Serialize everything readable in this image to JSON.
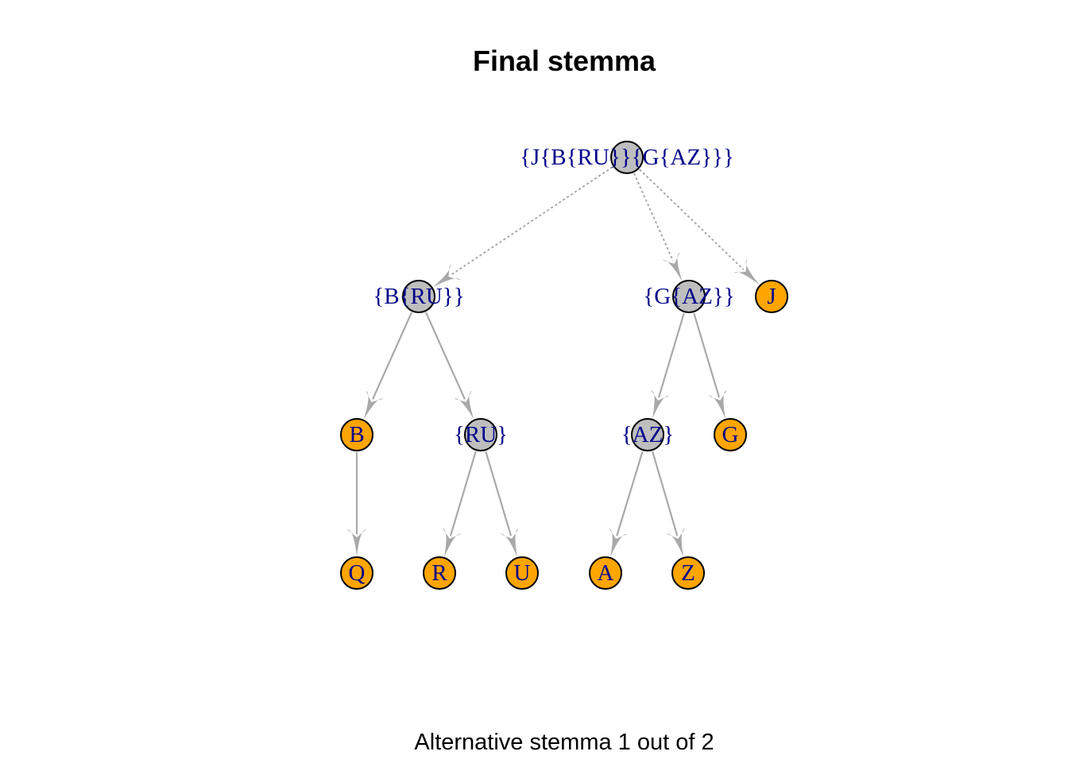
{
  "title": "Final stemma",
  "subtitle": "Alternative stemma 1 out of 2",
  "colors": {
    "internal_node": "#bebebe",
    "leaf_node": "#ffa500",
    "node_border": "#000000",
    "edge": "#a9a9a9",
    "label": "#00008b"
  },
  "nodes": [
    {
      "id": "root",
      "label": "{J{B{RU}}{G{AZ}}}",
      "kind": "internal"
    },
    {
      "id": "BRU",
      "label": "{B{RU}}",
      "kind": "internal"
    },
    {
      "id": "GAZ",
      "label": "{G{AZ}}",
      "kind": "internal"
    },
    {
      "id": "J",
      "label": "J",
      "kind": "leaf"
    },
    {
      "id": "B",
      "label": "B",
      "kind": "leaf"
    },
    {
      "id": "RU",
      "label": "{RU}",
      "kind": "internal"
    },
    {
      "id": "AZ",
      "label": "{AZ}",
      "kind": "internal"
    },
    {
      "id": "G",
      "label": "G",
      "kind": "leaf"
    },
    {
      "id": "Q",
      "label": "Q",
      "kind": "leaf"
    },
    {
      "id": "R",
      "label": "R",
      "kind": "leaf"
    },
    {
      "id": "U",
      "label": "U",
      "kind": "leaf"
    },
    {
      "id": "A",
      "label": "A",
      "kind": "leaf"
    },
    {
      "id": "Z",
      "label": "Z",
      "kind": "leaf"
    }
  ],
  "edges": [
    {
      "from": "root",
      "to": "BRU",
      "style": "dotted"
    },
    {
      "from": "root",
      "to": "GAZ",
      "style": "dotted"
    },
    {
      "from": "root",
      "to": "J",
      "style": "dotted"
    },
    {
      "from": "BRU",
      "to": "B",
      "style": "solid"
    },
    {
      "from": "BRU",
      "to": "RU",
      "style": "solid"
    },
    {
      "from": "GAZ",
      "to": "AZ",
      "style": "solid"
    },
    {
      "from": "GAZ",
      "to": "G",
      "style": "solid"
    },
    {
      "from": "B",
      "to": "Q",
      "style": "solid"
    },
    {
      "from": "RU",
      "to": "R",
      "style": "solid"
    },
    {
      "from": "RU",
      "to": "U",
      "style": "solid"
    },
    {
      "from": "AZ",
      "to": "A",
      "style": "solid"
    },
    {
      "from": "AZ",
      "to": "Z",
      "style": "solid"
    }
  ]
}
